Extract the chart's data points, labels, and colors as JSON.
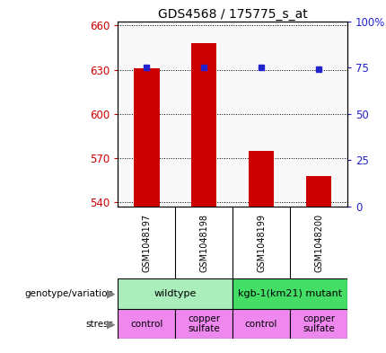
{
  "title": "GDS4568 / 175775_s_at",
  "samples": [
    "GSM1048197",
    "GSM1048198",
    "GSM1048199",
    "GSM1048200"
  ],
  "bar_values": [
    631,
    648,
    575,
    558
  ],
  "percentile_values": [
    75,
    75,
    75,
    74
  ],
  "ylim_left": [
    537,
    663
  ],
  "ylim_right": [
    0,
    100
  ],
  "yticks_left": [
    540,
    570,
    600,
    630,
    660
  ],
  "yticks_right": [
    0,
    25,
    50,
    75,
    100
  ],
  "bar_color": "#cc0000",
  "dot_color": "#2222cc",
  "bar_bottom": 537,
  "genotype_groups": [
    {
      "label": "wildtype",
      "cols": [
        0,
        1
      ],
      "color": "#aaeebb"
    },
    {
      "label": "kgb-1(km21) mutant",
      "cols": [
        2,
        3
      ],
      "color": "#44dd66"
    }
  ],
  "stress_colors": [
    "#ee88ee",
    "#ee88ee",
    "#ee88ee",
    "#ee88ee"
  ],
  "stress_labels": [
    "control",
    "copper\nsulfate",
    "control",
    "copper\nsulfate"
  ],
  "legend_count_color": "#cc0000",
  "legend_dot_color": "#2222cc",
  "axis_label_color_left": "#cc0000",
  "axis_label_color_right": "#2222cc",
  "sample_bg": "#cccccc",
  "plot_bg": "#f8f8f8"
}
